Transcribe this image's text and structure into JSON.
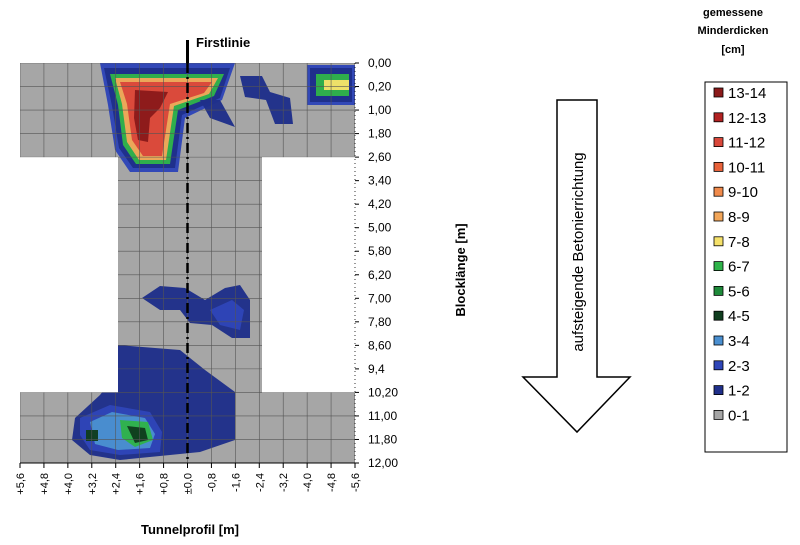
{
  "chart_data": {
    "type": "heatmap",
    "title": "Firstlinie",
    "xlabel": "Tunnelprofil [m]",
    "ylabel": "Blocklänge [m]",
    "x_ticks": [
      "+5,6",
      "+4,8",
      "+4,0",
      "+3,2",
      "+2,4",
      "+1,6",
      "+0,8",
      "±0,0",
      "-0,8",
      "-1,6",
      "-2,4",
      "-3,2",
      "-4,0",
      "-4,8",
      "-5,6"
    ],
    "y_ticks": [
      "0,00",
      "0,20",
      "1,00",
      "1,80",
      "2,60",
      "3,40",
      "4,20",
      "5,00",
      "5,80",
      "6,20",
      "7,00",
      "7,80",
      "8,60",
      "9,4",
      "10,20",
      "11,00",
      "11,80",
      "12,00"
    ],
    "arrow_label": "aufsteigende Betonierrichtung",
    "legend_title": [
      "gemessene",
      "Minderdicken",
      "[cm]"
    ],
    "legend": [
      {
        "label": "13-14",
        "color": "#8b1a1a"
      },
      {
        "label": "12-13",
        "color": "#b22222"
      },
      {
        "label": "11-12",
        "color": "#d9473a"
      },
      {
        "label": "10-11",
        "color": "#e8623a"
      },
      {
        "label": "9-10",
        "color": "#f08a4b"
      },
      {
        "label": "8-9",
        "color": "#f2a65a"
      },
      {
        "label": "7-8",
        "color": "#f5e16a"
      },
      {
        "label": "6-7",
        "color": "#2fb34a"
      },
      {
        "label": "5-6",
        "color": "#1e8a3a"
      },
      {
        "label": "4-5",
        "color": "#0f3d1e"
      },
      {
        "label": "3-4",
        "color": "#4a8fd0"
      },
      {
        "label": "2-3",
        "color": "#2e45b8"
      },
      {
        "label": "1-2",
        "color": "#1f2f8a"
      },
      {
        "label": "0-1",
        "color": "#a6a6a6"
      }
    ]
  }
}
